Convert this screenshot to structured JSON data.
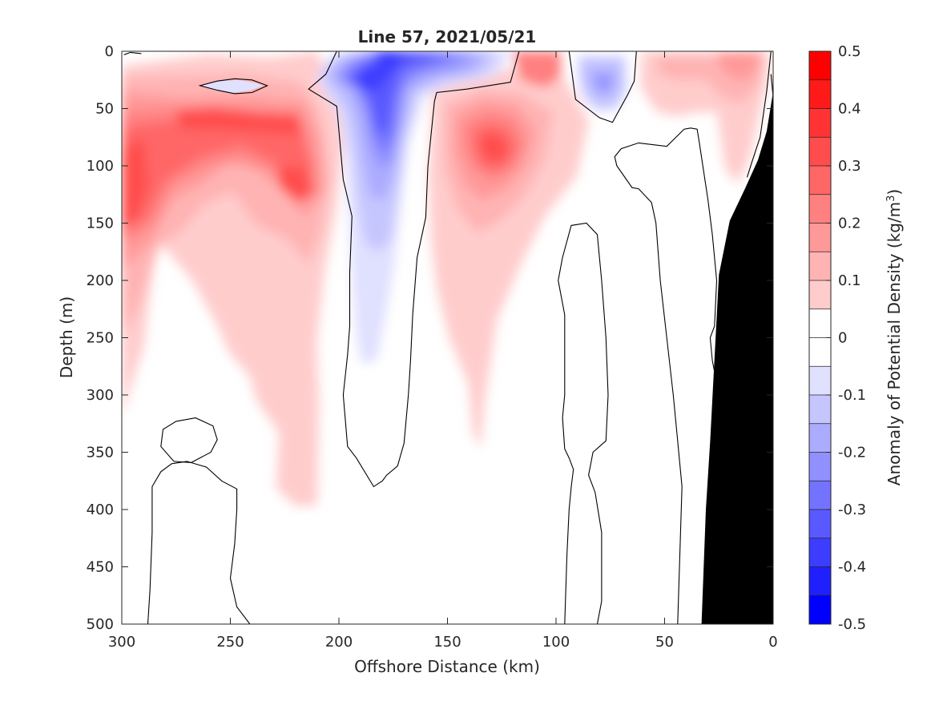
{
  "chart_data": {
    "type": "heatmap",
    "title": "Line 57, 2021/05/21",
    "xlabel": "Offshore Distance (km)",
    "ylabel": "Depth (m)",
    "xlim": [
      300,
      0
    ],
    "ylim": [
      0,
      500
    ],
    "x_reversed": true,
    "y_reversed": true,
    "xticks": [
      300,
      250,
      200,
      150,
      100,
      50,
      0
    ],
    "xtick_labels": [
      "300",
      "250",
      "200",
      "150",
      "100",
      "50",
      "0"
    ],
    "yticks": [
      0,
      50,
      100,
      150,
      200,
      250,
      300,
      350,
      400,
      450,
      500
    ],
    "ytick_labels": [
      "0",
      "50",
      "100",
      "150",
      "200",
      "250",
      "300",
      "350",
      "400",
      "450",
      "500"
    ],
    "colorbar": {
      "label_main": "Anomaly of Potential Density (kg/m",
      "label_sup": "3",
      "label_end": ")",
      "range": [
        -0.5,
        0.5
      ],
      "tick_values": [
        0.5,
        0.4,
        0.3,
        0.2,
        0.1,
        0,
        -0.1,
        -0.2,
        -0.3,
        -0.4,
        -0.5
      ],
      "tick_labels": [
        "0.5",
        "0.4",
        "0.3",
        "0.2",
        "0.1",
        "0",
        "-0.1",
        "-0.2",
        "-0.3",
        "-0.4",
        "-0.5"
      ],
      "levels": [
        {
          "min": 0.45,
          "max": 0.5,
          "color": "#ff0000"
        },
        {
          "min": 0.4,
          "max": 0.45,
          "color": "#ff1a1a"
        },
        {
          "min": 0.35,
          "max": 0.4,
          "color": "#ff3333"
        },
        {
          "min": 0.3,
          "max": 0.35,
          "color": "#ff4d4d"
        },
        {
          "min": 0.25,
          "max": 0.3,
          "color": "#ff6666"
        },
        {
          "min": 0.2,
          "max": 0.25,
          "color": "#ff8080"
        },
        {
          "min": 0.15,
          "max": 0.2,
          "color": "#ff9999"
        },
        {
          "min": 0.1,
          "max": 0.15,
          "color": "#ffb3b3"
        },
        {
          "min": 0.05,
          "max": 0.1,
          "color": "#ffcccc"
        },
        {
          "min": 0.0,
          "max": 0.05,
          "color": "#ffffff"
        },
        {
          "min": -0.05,
          "max": 0.0,
          "color": "#ffffff"
        },
        {
          "min": -0.1,
          "max": -0.05,
          "color": "#e0e0ff"
        },
        {
          "min": -0.15,
          "max": -0.1,
          "color": "#c6c6ff"
        },
        {
          "min": -0.2,
          "max": -0.15,
          "color": "#acacff"
        },
        {
          "min": -0.25,
          "max": -0.2,
          "color": "#9090ff"
        },
        {
          "min": -0.3,
          "max": -0.25,
          "color": "#7373ff"
        },
        {
          "min": -0.35,
          "max": -0.3,
          "color": "#5959ff"
        },
        {
          "min": -0.4,
          "max": -0.35,
          "color": "#3d3dff"
        },
        {
          "min": -0.45,
          "max": -0.4,
          "color": "#2020ff"
        },
        {
          "min": -0.5,
          "max": -0.45,
          "color": "#0000ff"
        }
      ]
    },
    "bathymetry": {
      "color": "#000000",
      "points": [
        [
          33,
          500
        ],
        [
          31,
          400
        ],
        [
          29,
          340
        ],
        [
          25,
          195
        ],
        [
          20,
          148
        ],
        [
          13,
          120
        ],
        [
          7,
          95
        ],
        [
          3,
          70
        ],
        [
          0,
          35
        ],
        [
          0,
          500
        ]
      ]
    },
    "zero_contours": [
      {
        "closed": false,
        "points": [
          [
            299,
            3
          ],
          [
            296,
            1
          ],
          [
            291,
            2
          ]
        ]
      },
      {
        "closed": true,
        "points": [
          [
            264,
            30
          ],
          [
            256,
            26
          ],
          [
            248,
            24
          ],
          [
            240,
            25
          ],
          [
            233,
            30
          ],
          [
            240,
            36
          ],
          [
            248,
            37
          ],
          [
            256,
            34
          ]
        ]
      },
      {
        "closed": false,
        "points": [
          [
            201,
            0
          ],
          [
            206,
            20
          ],
          [
            214,
            33
          ],
          [
            201,
            48
          ],
          [
            198,
            112
          ],
          [
            194,
            144
          ],
          [
            195,
            193
          ],
          [
            195,
            240
          ],
          [
            196,
            265
          ],
          [
            198,
            300
          ],
          [
            196,
            345
          ],
          [
            192,
            355
          ],
          [
            184,
            380
          ],
          [
            180,
            375
          ],
          [
            178,
            370
          ],
          [
            173,
            362
          ],
          [
            170,
            342
          ],
          [
            168,
            300
          ],
          [
            167,
            270
          ],
          [
            166,
            230
          ],
          [
            164,
            180
          ],
          [
            160,
            145
          ],
          [
            159,
            100
          ],
          [
            156,
            44
          ],
          [
            155,
            36
          ],
          [
            141,
            33
          ],
          [
            121,
            27
          ],
          [
            117,
            0
          ]
        ]
      },
      {
        "closed": false,
        "points": [
          [
            94,
            0
          ],
          [
            91,
            42
          ],
          [
            80,
            58
          ],
          [
            74,
            62
          ],
          [
            72,
            55
          ],
          [
            67,
            38
          ],
          [
            64,
            26
          ],
          [
            63,
            0
          ]
        ]
      },
      {
        "closed": false,
        "points": [
          [
            1,
            0
          ],
          [
            3,
            35
          ],
          [
            6,
            75
          ],
          [
            10,
            98
          ],
          [
            12,
            110
          ]
        ]
      },
      {
        "closed": false,
        "points": [
          [
            1,
            20
          ],
          [
            0,
            40
          ]
        ]
      },
      {
        "closed": false,
        "points": [
          [
            44,
            500
          ],
          [
            43,
            440
          ],
          [
            42,
            380
          ],
          [
            44,
            340
          ],
          [
            46,
            300
          ],
          [
            49,
            250
          ],
          [
            52,
            200
          ],
          [
            54,
            150
          ],
          [
            56,
            132
          ],
          [
            62,
            120
          ],
          [
            65,
            119
          ],
          [
            72,
            100
          ],
          [
            73,
            92
          ],
          [
            70,
            85
          ],
          [
            62,
            80
          ],
          [
            49,
            83
          ],
          [
            41,
            68
          ],
          [
            38,
            67
          ],
          [
            35,
            68
          ],
          [
            34,
            80
          ],
          [
            30,
            130
          ],
          [
            28,
            160
          ],
          [
            26,
            200
          ],
          [
            27,
            240
          ],
          [
            29,
            250
          ],
          [
            28,
            270
          ],
          [
            25,
            300
          ]
        ]
      },
      {
        "closed": false,
        "points": [
          [
            96,
            500
          ],
          [
            95,
            440
          ],
          [
            94,
            400
          ],
          [
            93,
            380
          ],
          [
            92,
            365
          ],
          [
            94,
            355
          ],
          [
            96,
            347
          ],
          [
            97,
            320
          ],
          [
            96,
            300
          ],
          [
            96,
            260
          ],
          [
            96,
            230
          ],
          [
            99,
            200
          ],
          [
            97,
            180
          ],
          [
            93,
            152
          ],
          [
            86,
            150
          ],
          [
            81,
            160
          ],
          [
            79,
            200
          ],
          [
            77,
            250
          ],
          [
            76,
            300
          ],
          [
            77,
            340
          ],
          [
            83,
            350
          ],
          [
            84,
            360
          ],
          [
            85,
            370
          ],
          [
            82,
            385
          ],
          [
            79,
            420
          ],
          [
            79,
            480
          ],
          [
            81,
            500
          ]
        ]
      },
      {
        "closed": false,
        "points": [
          [
            288,
            500
          ],
          [
            287,
            470
          ],
          [
            286,
            420
          ],
          [
            286,
            380
          ],
          [
            282,
            367
          ],
          [
            277,
            360
          ],
          [
            270,
            358
          ],
          [
            261,
            363
          ],
          [
            254,
            375
          ],
          [
            247,
            382
          ],
          [
            247,
            400
          ],
          [
            248,
            430
          ],
          [
            250,
            460
          ],
          [
            247,
            485
          ],
          [
            241,
            500
          ]
        ]
      },
      {
        "closed": true,
        "points": [
          [
            266,
            320
          ],
          [
            275,
            323
          ],
          [
            281,
            330
          ],
          [
            282,
            345
          ],
          [
            276,
            358
          ],
          [
            268,
            359
          ],
          [
            259,
            350
          ],
          [
            256,
            339
          ],
          [
            258,
            327
          ]
        ]
      }
    ]
  }
}
